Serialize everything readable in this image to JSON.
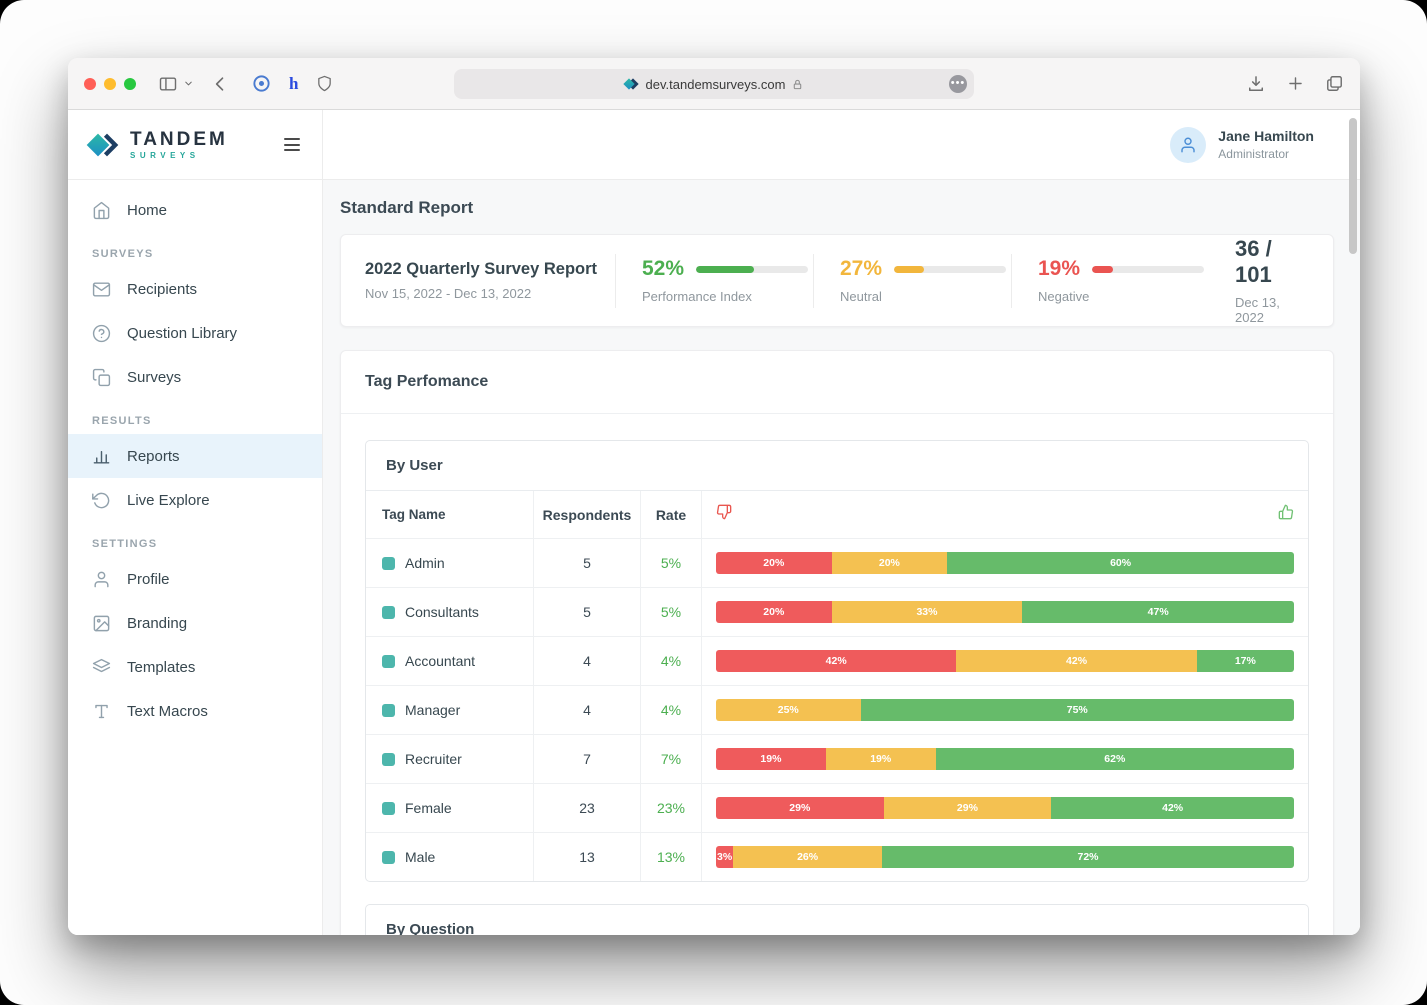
{
  "browser": {
    "url": "dev.tandemsurveys.com"
  },
  "brand": {
    "name": "TANDEM",
    "tagline": "SURVEYS"
  },
  "user": {
    "name": "Jane Hamilton",
    "role": "Administrator"
  },
  "sidebar": {
    "groups": [
      {
        "label": "",
        "items": [
          {
            "label": "Home",
            "active": false
          }
        ]
      },
      {
        "label": "SURVEYS",
        "items": [
          {
            "label": "Recipients",
            "active": false
          },
          {
            "label": "Question Library",
            "active": false
          },
          {
            "label": "Surveys",
            "active": false
          }
        ]
      },
      {
        "label": "RESULTS",
        "items": [
          {
            "label": "Reports",
            "active": true
          },
          {
            "label": "Live Explore",
            "active": false
          }
        ]
      },
      {
        "label": "SETTINGS",
        "items": [
          {
            "label": "Profile",
            "active": false
          },
          {
            "label": "Branding",
            "active": false
          },
          {
            "label": "Templates",
            "active": false
          },
          {
            "label": "Text Macros",
            "active": false
          }
        ]
      }
    ]
  },
  "page": {
    "title": "Standard Report",
    "summary": {
      "report_title": "2022 Quarterly Survey Report",
      "date_range": "Nov 15, 2022 - Dec 13, 2022",
      "stats": [
        {
          "value": "52%",
          "pct": 52,
          "label": "Performance Index",
          "color": "#4caf50"
        },
        {
          "value": "27%",
          "pct": 27,
          "label": "Neutral",
          "color": "#f2b63c"
        },
        {
          "value": "19%",
          "pct": 19,
          "label": "Negative",
          "color": "#ea5451"
        }
      ],
      "score": "36 / 101",
      "score_date": "Dec 13, 2022"
    },
    "tag_performance": {
      "title": "Tag Perfomance",
      "by_user": {
        "title": "By User",
        "columns": {
          "tag": "Tag Name",
          "respondents": "Respondents",
          "rate": "Rate"
        },
        "swatch_color": "#4db6ac",
        "segment_colors": {
          "negative": "#ef5b5c",
          "neutral": "#f4c151",
          "positive": "#66bb6a"
        },
        "rows": [
          {
            "tag": "Admin",
            "respondents": "5",
            "rate": "5%",
            "segments": [
              {
                "type": "negative",
                "pct": 20,
                "label": "20%"
              },
              {
                "type": "neutral",
                "pct": 20,
                "label": "20%"
              },
              {
                "type": "positive",
                "pct": 60,
                "label": "60%"
              }
            ]
          },
          {
            "tag": "Consultants",
            "respondents": "5",
            "rate": "5%",
            "segments": [
              {
                "type": "negative",
                "pct": 20,
                "label": "20%"
              },
              {
                "type": "neutral",
                "pct": 33,
                "label": "33%"
              },
              {
                "type": "positive",
                "pct": 47,
                "label": "47%"
              }
            ]
          },
          {
            "tag": "Accountant",
            "respondents": "4",
            "rate": "4%",
            "segments": [
              {
                "type": "negative",
                "pct": 42,
                "label": "42%"
              },
              {
                "type": "neutral",
                "pct": 42,
                "label": "42%"
              },
              {
                "type": "positive",
                "pct": 17,
                "label": "17%"
              }
            ]
          },
          {
            "tag": "Manager",
            "respondents": "4",
            "rate": "4%",
            "segments": [
              {
                "type": "neutral",
                "pct": 25,
                "label": "25%"
              },
              {
                "type": "positive",
                "pct": 75,
                "label": "75%"
              }
            ]
          },
          {
            "tag": "Recruiter",
            "respondents": "7",
            "rate": "7%",
            "segments": [
              {
                "type": "negative",
                "pct": 19,
                "label": "19%"
              },
              {
                "type": "neutral",
                "pct": 19,
                "label": "19%"
              },
              {
                "type": "positive",
                "pct": 62,
                "label": "62%"
              }
            ]
          },
          {
            "tag": "Female",
            "respondents": "23",
            "rate": "23%",
            "segments": [
              {
                "type": "negative",
                "pct": 29,
                "label": "29%"
              },
              {
                "type": "neutral",
                "pct": 29,
                "label": "29%"
              },
              {
                "type": "positive",
                "pct": 42,
                "label": "42%"
              }
            ]
          },
          {
            "tag": "Male",
            "respondents": "13",
            "rate": "13%",
            "segments": [
              {
                "type": "negative",
                "pct": 3,
                "label": "3%"
              },
              {
                "type": "neutral",
                "pct": 26,
                "label": "26%"
              },
              {
                "type": "positive",
                "pct": 72,
                "label": "72%"
              }
            ]
          }
        ]
      },
      "by_question": {
        "title": "By Question"
      }
    }
  }
}
